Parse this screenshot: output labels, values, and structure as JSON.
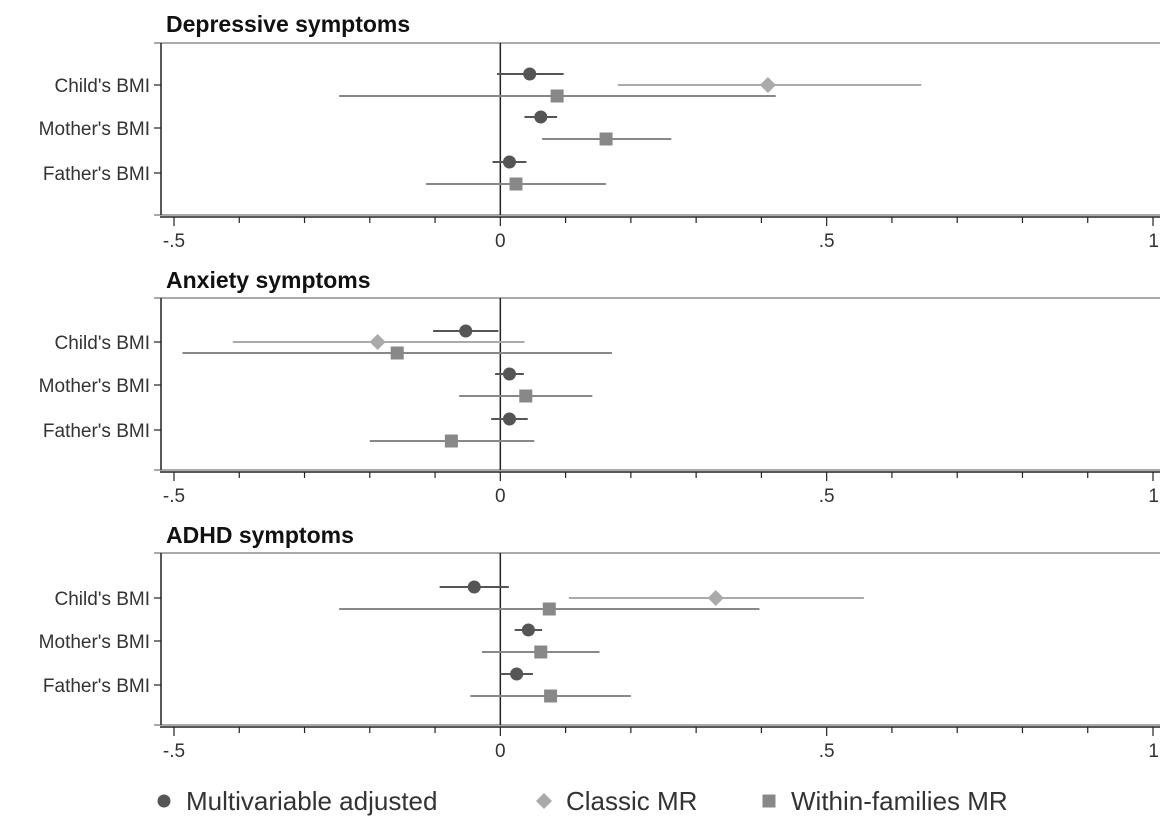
{
  "chart_data": [
    {
      "type": "forest",
      "title": "Depressive symptoms",
      "categories": [
        "Child's BMI",
        "Mother's BMI",
        "Father's BMI"
      ],
      "xlim": [
        -0.5,
        1
      ],
      "xticks": [
        "-.5",
        "0",
        ".5",
        "1"
      ],
      "series": [
        {
          "name": "Multivariable adjusted",
          "estimates": [
            0.045,
            0.062,
            0.014
          ],
          "ci": [
            [
              -0.005,
              0.097
            ],
            [
              0.037,
              0.087
            ],
            [
              -0.012,
              0.04
            ]
          ]
        },
        {
          "name": "Classic MR",
          "estimates": [
            0.41,
            null,
            null
          ],
          "ci": [
            [
              0.18,
              0.645
            ],
            null,
            null
          ]
        },
        {
          "name": "Within-families MR",
          "estimates": [
            0.087,
            0.162,
            0.024
          ],
          "ci": [
            [
              -0.247,
              0.422
            ],
            [
              0.064,
              0.262
            ],
            [
              -0.114,
              0.162
            ]
          ]
        }
      ]
    },
    {
      "type": "forest",
      "title": "Anxiety symptoms",
      "categories": [
        "Child's BMI",
        "Mother's BMI",
        "Father's BMI"
      ],
      "xlim": [
        -0.5,
        1
      ],
      "xticks": [
        "-.5",
        "0",
        ".5",
        "1"
      ],
      "series": [
        {
          "name": "Multivariable adjusted",
          "estimates": [
            -0.053,
            0.014,
            0.014
          ],
          "ci": [
            [
              -0.103,
              -0.003
            ],
            [
              -0.008,
              0.036
            ],
            [
              -0.014,
              0.042
            ]
          ]
        },
        {
          "name": "Classic MR",
          "estimates": [
            -0.188,
            null,
            null
          ],
          "ci": [
            [
              -0.41,
              0.037
            ],
            null,
            null
          ]
        },
        {
          "name": "Within-families MR",
          "estimates": [
            -0.158,
            0.039,
            -0.075
          ],
          "ci": [
            [
              -0.487,
              0.171
            ],
            [
              -0.063,
              0.141
            ],
            [
              -0.2,
              0.052
            ]
          ]
        }
      ]
    },
    {
      "type": "forest",
      "title": "ADHD symptoms",
      "categories": [
        "Child's BMI",
        "Mother's BMI",
        "Father's BMI"
      ],
      "xlim": [
        -0.5,
        1
      ],
      "xticks": [
        "-.5",
        "0",
        ".5",
        "1"
      ],
      "series": [
        {
          "name": "Multivariable adjusted",
          "estimates": [
            -0.04,
            0.043,
            0.025
          ],
          "ci": [
            [
              -0.093,
              0.013
            ],
            [
              0.022,
              0.064
            ],
            [
              0.0,
              0.05
            ]
          ]
        },
        {
          "name": "Classic MR",
          "estimates": [
            0.33,
            null,
            null
          ],
          "ci": [
            [
              0.105,
              0.557
            ],
            null,
            null
          ]
        },
        {
          "name": "Within-families MR",
          "estimates": [
            0.075,
            0.062,
            0.077
          ],
          "ci": [
            [
              -0.247,
              0.397
            ],
            [
              -0.028,
              0.152
            ],
            [
              -0.046,
              0.2
            ]
          ]
        }
      ]
    }
  ],
  "legend": {
    "items": [
      {
        "label": "Multivariable adjusted",
        "marker": "circle",
        "color": "#555555"
      },
      {
        "label": "Classic MR",
        "marker": "diamond",
        "color": "#aaaaaa"
      },
      {
        "label": "Within-families MR",
        "marker": "square",
        "color": "#888888"
      }
    ]
  },
  "colors": {
    "multivariable": "#555555",
    "classic": "#aaaaaa",
    "within": "#888888",
    "axis": "#222222"
  }
}
